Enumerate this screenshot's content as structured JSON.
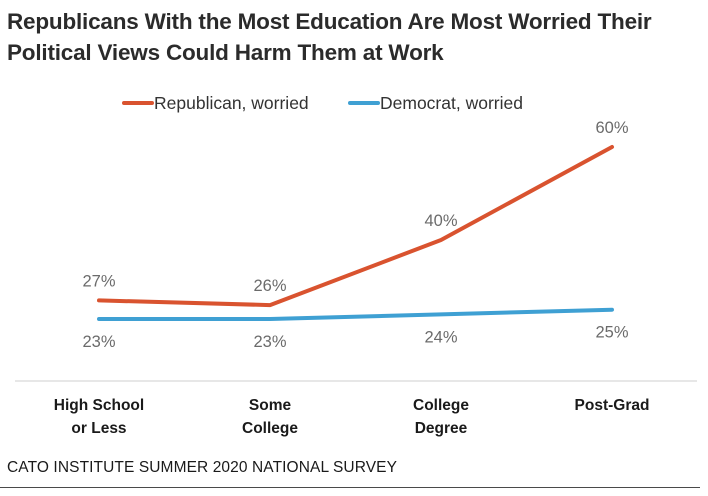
{
  "title_lines": [
    "Republicans With the Most Education Are Most Worried Their",
    "Political Views Could Harm Them at Work"
  ],
  "source": "CATO INSTITUTE SUMMER 2020 NATIONAL SURVEY",
  "chart_data": {
    "type": "line",
    "title": "Republicans With the Most Education Are Most Worried Their Political Views Could Harm Them at Work",
    "categories": [
      [
        "High School",
        "or Less"
      ],
      [
        "Some",
        "College"
      ],
      [
        "College",
        "Degree"
      ],
      [
        "Post-Grad"
      ]
    ],
    "series": [
      {
        "name": "Republican, worried",
        "color": "#d9532f",
        "values": [
          27,
          26,
          40,
          60
        ],
        "labels": [
          "27%",
          "26%",
          "40%",
          "60%"
        ]
      },
      {
        "name": "Democrat, worried",
        "color": "#3fa0d3",
        "values": [
          23,
          23,
          24,
          25
        ],
        "labels": [
          "23%",
          "23%",
          "24%",
          "25%"
        ]
      }
    ],
    "ylim": [
      20,
      62
    ],
    "grid": false,
    "legend_position": "top"
  }
}
